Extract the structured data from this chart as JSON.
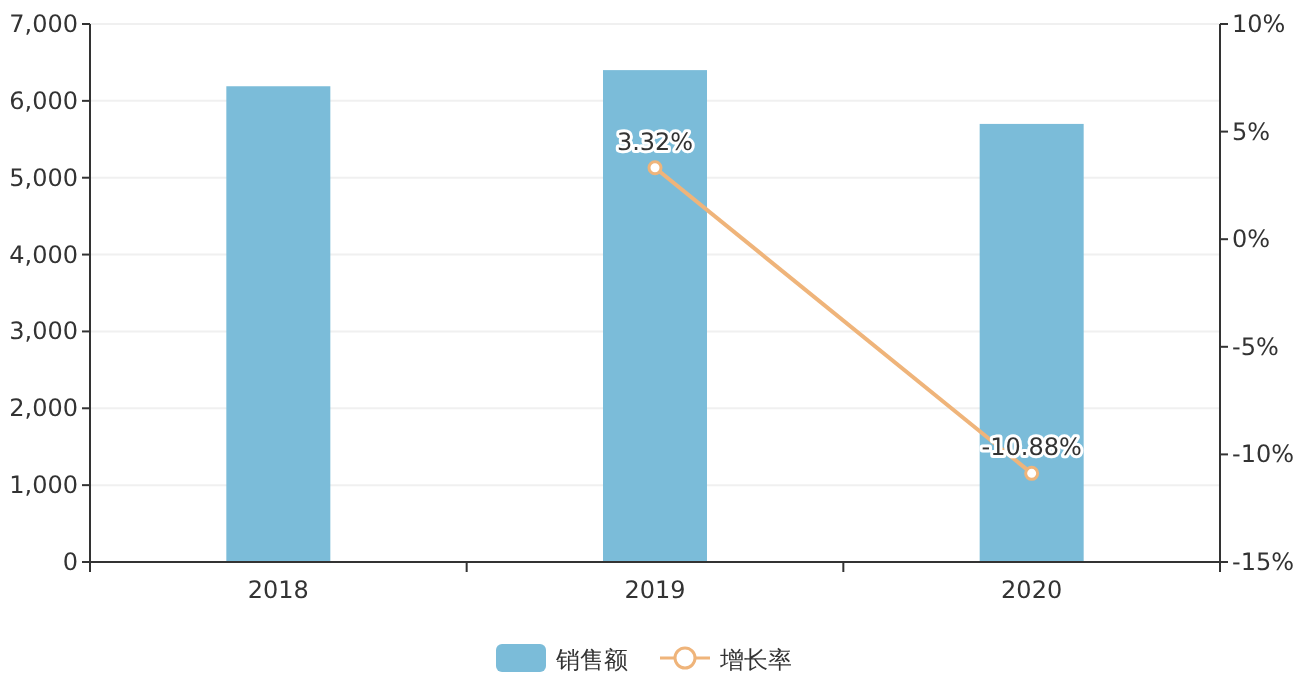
{
  "chart_data": {
    "type": "bar",
    "categories": [
      "2018",
      "2019",
      "2020"
    ],
    "series": [
      {
        "name": "销售额",
        "color": "#7bbcd9",
        "values": [
          6190,
          6400,
          5700
        ]
      },
      {
        "name": "增长率",
        "type": "line",
        "axis": "y2",
        "color": "#efb47a",
        "values": [
          null,
          3.32,
          -10.88
        ],
        "value_labels": [
          null,
          "3.32%",
          "-10.88%"
        ],
        "marker": "circle"
      }
    ],
    "ylim": [
      0,
      7000
    ],
    "yticks": [
      {
        "value": 0,
        "label": "0"
      },
      {
        "value": 1000,
        "label": "1,000"
      },
      {
        "value": 2000,
        "label": "2,000"
      },
      {
        "value": 3000,
        "label": "3,000"
      },
      {
        "value": 4000,
        "label": "4,000"
      },
      {
        "value": 5000,
        "label": "5,000"
      },
      {
        "value": 6000,
        "label": "6,000"
      },
      {
        "value": 7000,
        "label": "7,000"
      }
    ],
    "y2lim": [
      -15,
      10
    ],
    "y2ticks": [
      {
        "value": -15,
        "label": "-15%"
      },
      {
        "value": -10,
        "label": "-10%"
      },
      {
        "value": -5,
        "label": "-5%"
      },
      {
        "value": 0,
        "label": "0%"
      },
      {
        "value": 5,
        "label": "5%"
      },
      {
        "value": 10,
        "label": "10%"
      }
    ],
    "grid": "y",
    "legend": "bottom"
  }
}
